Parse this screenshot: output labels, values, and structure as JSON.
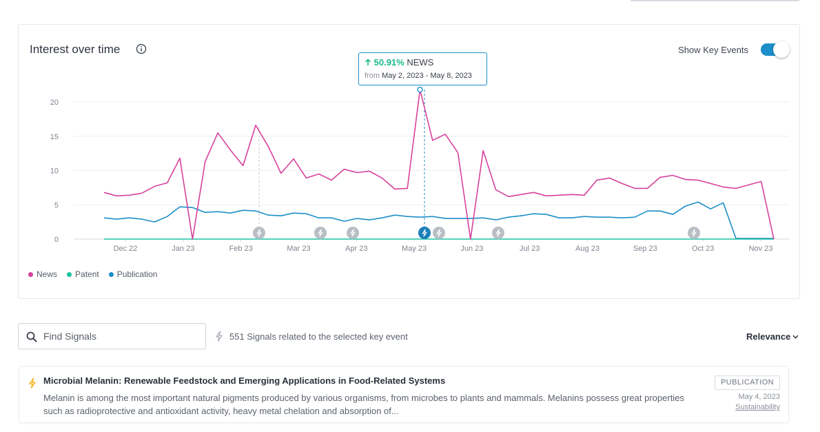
{
  "card": {
    "title": "Interest over time",
    "show_key_events_label": "Show Key Events",
    "show_key_events_on": true
  },
  "tooltip": {
    "change": "50.91%",
    "series": "NEWS",
    "from_label": "from",
    "date_range": "May 2, 2023 - May 8, 2023"
  },
  "legend": [
    {
      "name": "News",
      "color": "#d6419b"
    },
    {
      "name": "Patent",
      "color": "#19c2a0"
    },
    {
      "name": "Publication",
      "color": "#1c8ec8"
    }
  ],
  "chart_data": {
    "type": "line",
    "xlabels": [
      "Dec 22",
      "Jan 23",
      "Feb 23",
      "Mar 23",
      "Apr 23",
      "May 23",
      "Jun 23",
      "Jul 23",
      "Aug 23",
      "Sep 23",
      "Oct 23",
      "Nov 23"
    ],
    "ylabels": [
      "0",
      "5",
      "10",
      "15",
      "20"
    ],
    "ylim": [
      0,
      21
    ],
    "grid": true,
    "series": [
      {
        "name": "News",
        "color": "#d6419b",
        "values": [
          6.8,
          6.3,
          6.4,
          6.7,
          7.7,
          8.2,
          11.8,
          0,
          11.3,
          15.5,
          13,
          10.7,
          16.6,
          13.5,
          9.6,
          11.7,
          8.9,
          9.5,
          8.6,
          10.2,
          9.7,
          9.9,
          8.9,
          7.3,
          7.4,
          21.8,
          14.4,
          15.3,
          12.6,
          0,
          12.9,
          7.2,
          6.2,
          6.5,
          6.8,
          6.3,
          6.4,
          6.5,
          6.4,
          8.6,
          8.9,
          8.1,
          7.4,
          7.4,
          9,
          9.3,
          8.7,
          8.6,
          8.1,
          7.6,
          7.4,
          7.9,
          8.4,
          0
        ]
      },
      {
        "name": "Publication",
        "color": "#1c8ec8",
        "values": [
          3.1,
          2.9,
          3.1,
          2.9,
          2.5,
          3.3,
          4.7,
          4.6,
          3.9,
          4,
          3.8,
          4.2,
          4.1,
          3.5,
          3.4,
          3.8,
          3.7,
          3.1,
          3.1,
          2.6,
          3,
          2.8,
          3.1,
          3.5,
          3.3,
          3.2,
          3.3,
          3,
          3,
          3,
          3.1,
          2.8,
          3.2,
          3.4,
          3.7,
          3.6,
          3.1,
          3.1,
          3.3,
          3.2,
          3.2,
          3.1,
          3.2,
          4.1,
          4.1,
          3.6,
          4.8,
          5.4,
          4.4,
          5.3,
          0.1,
          0.1,
          0.1,
          0.1
        ]
      },
      {
        "name": "Patent",
        "color": "#19c2a0",
        "values": [
          0,
          0,
          0,
          0,
          0,
          0,
          0,
          0,
          0,
          0,
          0,
          0,
          0,
          0,
          0,
          0,
          0,
          0,
          0,
          0,
          0,
          0,
          0,
          0,
          0,
          0,
          0,
          0,
          0,
          0,
          0,
          0,
          0,
          0,
          0,
          0,
          0,
          0,
          0,
          0,
          0,
          0,
          0,
          0,
          0,
          0,
          0,
          0,
          0,
          0,
          0,
          0,
          0,
          0
        ]
      }
    ]
  },
  "search": {
    "placeholder": "Find Signals"
  },
  "signals_info": "551 Signals related to the selected key event",
  "sort_label": "Relevance",
  "result": {
    "title": "Microbial Melanin: Renewable Feedstock and Emerging Applications in Food-Related Systems",
    "snippet": "Melanin is among the most important natural pigments produced by various organisms, from microbes to plants and mammals. Melanins possess great properties such as radioprotective and antioxidant activity, heavy metal chelation and absorption of...",
    "type_badge": "PUBLICATION",
    "date": "May 4, 2023",
    "tag": "Sustainability"
  },
  "icons": {
    "info": "info-icon",
    "toggle": "switch",
    "search": "search-icon",
    "bolt": "lightning-icon",
    "arrow": "arrow-up-icon",
    "chevron": "chevron-down-icon"
  }
}
